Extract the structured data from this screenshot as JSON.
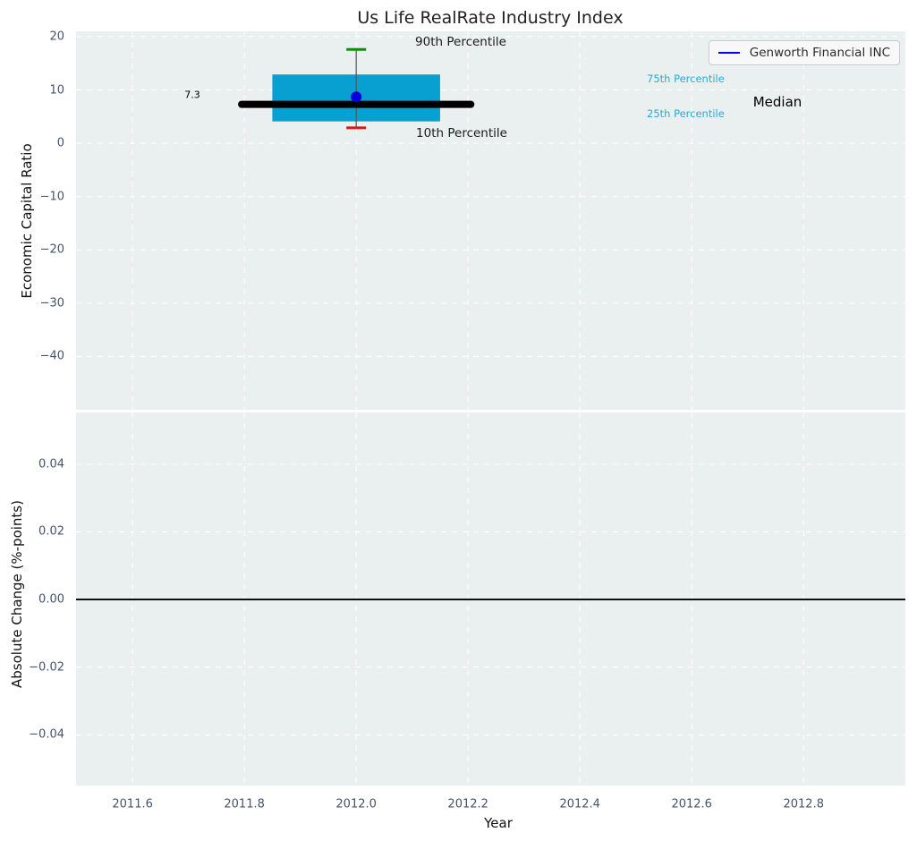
{
  "colors": {
    "panel_bg": "#eaefef",
    "grid": "#ffffff",
    "box": "#089fd1",
    "percentile_label": "#2aa9dd",
    "p90_cap": "#0c8f0c",
    "p10_cap": "#ea1010",
    "whisker": "#555555",
    "median_line": "#000000",
    "company": "#0000dd",
    "legend_line": "#0000ff",
    "zero_line": "#000000",
    "tick": "#46536a"
  },
  "chart_data": [
    {
      "type": "box",
      "panel": "top",
      "title": "Us Life RealRate Industry Index",
      "ylabel": "Economic Capital Ratio",
      "xlim": [
        2011.499,
        2012.982
      ],
      "ylim": [
        -50,
        21
      ],
      "xticks": [
        2011.6,
        2011.8,
        2012.0,
        2012.2,
        2012.4,
        2012.6,
        2012.8
      ],
      "yticks": [
        20,
        10,
        0,
        -10,
        -20,
        -30,
        -40
      ],
      "ytick_labels": [
        "20",
        "10",
        "0",
        "−10",
        "−20",
        "−30",
        "−40"
      ],
      "grid": "white-dashed",
      "box": {
        "x": 2012.0,
        "p90": 17.6,
        "p75": 12.9,
        "median": 7.3,
        "p25": 4.1,
        "p10": 2.9,
        "box_width_years": 0.3,
        "median_line_width_years": 0.41
      },
      "company_point": {
        "label": "Genworth Financial INC",
        "x": 2012.0,
        "y": 8.7
      },
      "legend": {
        "position": "upper-right",
        "entries": [
          {
            "label": "Genworth Financial INC",
            "color": "#0000ff"
          }
        ]
      },
      "annotations": [
        {
          "text": "90th Percentile",
          "role": "p90-label"
        },
        {
          "text": "10th Percentile",
          "role": "p10-label"
        },
        {
          "text": "75th Percentile",
          "role": "p75-label"
        },
        {
          "text": "25th Percentile",
          "role": "p25-label"
        },
        {
          "text": "Median",
          "role": "median-label"
        },
        {
          "text": "7.3",
          "role": "median-value-label"
        }
      ]
    },
    {
      "type": "line",
      "panel": "bottom",
      "ylabel": "Absolute Change (%-points)",
      "xlabel": "Year",
      "xlim": [
        2011.499,
        2012.982
      ],
      "ylim": [
        -0.055,
        0.0553
      ],
      "xticks": [
        2011.6,
        2011.8,
        2012.0,
        2012.2,
        2012.4,
        2012.6,
        2012.8
      ],
      "xtick_labels": [
        "2011.6",
        "2011.8",
        "2012.0",
        "2012.2",
        "2012.4",
        "2012.6",
        "2012.8"
      ],
      "yticks": [
        0.04,
        0.02,
        0,
        -0.02,
        -0.04
      ],
      "ytick_labels": [
        "0.04",
        "0.02",
        "0.00",
        "−0.02",
        "−0.04"
      ],
      "grid": "white-dashed",
      "zero_line": 0,
      "series": []
    }
  ]
}
